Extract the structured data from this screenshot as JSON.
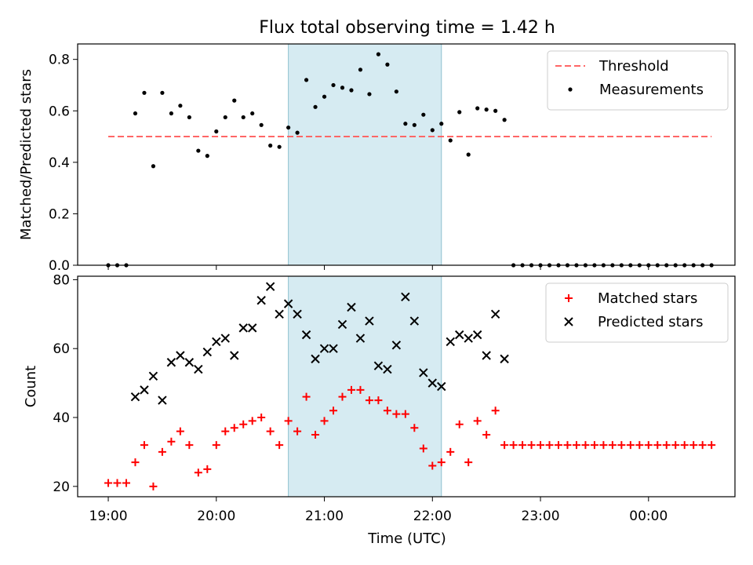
{
  "figure_title": "Flux total observing time = 1.42 h",
  "x_axis": {
    "label": "Time (UTC)",
    "ticks": [
      "19:00",
      "20:00",
      "21:00",
      "22:00",
      "23:00",
      "00:00"
    ]
  },
  "highlight_window": {
    "start": "20:40",
    "end": "22:05",
    "color": "#add8e6"
  },
  "colors": {
    "threshold": "#ff6666",
    "measurements": "#000000",
    "matched": "#ff0000",
    "predicted": "#000000"
  },
  "chart_data": [
    {
      "type": "scatter",
      "ylabel": "Matched/Predicted stars",
      "ylim": [
        0,
        0.86
      ],
      "yticks": [
        "0.0",
        "0.2",
        "0.4",
        "0.6",
        "0.8"
      ],
      "legend_placement": "top-right",
      "threshold": {
        "name": "Threshold",
        "y": 0.5,
        "x_start": "19:00",
        "x_end": "00:35"
      },
      "series": [
        {
          "name": "Measurements",
          "x": [
            "19:00",
            "19:05",
            "19:10",
            "19:15",
            "19:20",
            "19:25",
            "19:30",
            "19:35",
            "19:40",
            "19:45",
            "19:50",
            "19:55",
            "20:00",
            "20:05",
            "20:10",
            "20:15",
            "20:20",
            "20:25",
            "20:30",
            "20:35",
            "20:40",
            "20:45",
            "20:50",
            "20:55",
            "21:00",
            "21:05",
            "21:10",
            "21:15",
            "21:20",
            "21:25",
            "21:30",
            "21:35",
            "21:40",
            "21:45",
            "21:50",
            "21:55",
            "22:00",
            "22:05",
            "22:10",
            "22:15",
            "22:20",
            "22:25",
            "22:30",
            "22:35",
            "22:40",
            "22:45",
            "22:50",
            "22:55",
            "23:00",
            "23:05",
            "23:10",
            "23:15",
            "23:20",
            "23:25",
            "23:30",
            "23:35",
            "23:40",
            "23:45",
            "23:50",
            "23:55",
            "00:00",
            "00:05",
            "00:10",
            "00:15",
            "00:20",
            "00:25",
            "00:30",
            "00:35"
          ],
          "y": [
            0.0,
            0.0,
            0.0,
            0.59,
            0.67,
            0.385,
            0.67,
            0.59,
            0.62,
            0.575,
            0.445,
            0.425,
            0.52,
            0.575,
            0.64,
            0.575,
            0.59,
            0.545,
            0.465,
            0.46,
            0.535,
            0.515,
            0.72,
            0.615,
            0.655,
            0.7,
            0.69,
            0.68,
            0.76,
            0.665,
            0.82,
            0.78,
            0.675,
            0.55,
            0.545,
            0.585,
            0.525,
            0.55,
            0.485,
            0.595,
            0.43,
            0.61,
            0.605,
            0.6,
            0.565,
            0.0,
            0.0,
            0.0,
            0.0,
            0.0,
            0.0,
            0.0,
            0.0,
            0.0,
            0.0,
            0.0,
            0.0,
            0.0,
            0.0,
            0.0,
            0.0,
            0.0,
            0.0,
            0.0,
            0.0,
            0.0,
            0.0,
            0.0
          ]
        }
      ]
    },
    {
      "type": "scatter",
      "ylabel": "Count",
      "ylim": [
        17,
        81
      ],
      "yticks": [
        "20",
        "40",
        "60",
        "80"
      ],
      "legend_placement": "top-right",
      "series": [
        {
          "name": "Matched stars",
          "marker": "+",
          "x": [
            "19:00",
            "19:05",
            "19:10",
            "19:15",
            "19:20",
            "19:25",
            "19:30",
            "19:35",
            "19:40",
            "19:45",
            "19:50",
            "19:55",
            "20:00",
            "20:05",
            "20:10",
            "20:15",
            "20:20",
            "20:25",
            "20:30",
            "20:35",
            "20:40",
            "20:45",
            "20:50",
            "20:55",
            "21:00",
            "21:05",
            "21:10",
            "21:15",
            "21:20",
            "21:25",
            "21:30",
            "21:35",
            "21:40",
            "21:45",
            "21:50",
            "21:55",
            "22:00",
            "22:05",
            "22:10",
            "22:15",
            "22:20",
            "22:25",
            "22:30",
            "22:35",
            "22:40",
            "22:45",
            "22:50",
            "22:55",
            "23:00",
            "23:05",
            "23:10",
            "23:15",
            "23:20",
            "23:25",
            "23:30",
            "23:35",
            "23:40",
            "23:45",
            "23:50",
            "23:55",
            "00:00",
            "00:05",
            "00:10",
            "00:15",
            "00:20",
            "00:25",
            "00:30",
            "00:35"
          ],
          "y": [
            21,
            21,
            21,
            27,
            32,
            20,
            30,
            33,
            36,
            32,
            24,
            25,
            32,
            36,
            37,
            38,
            39,
            40,
            36,
            32,
            39,
            36,
            46,
            35,
            39,
            42,
            46,
            48,
            48,
            45,
            45,
            42,
            41,
            41,
            37,
            31,
            26,
            27,
            30,
            38,
            27,
            39,
            35,
            42,
            32,
            32,
            32,
            32,
            32,
            32,
            32,
            32,
            32,
            32,
            32,
            32,
            32,
            32,
            32,
            32,
            32,
            32,
            32,
            32,
            32,
            32,
            32,
            32
          ]
        },
        {
          "name": "Predicted stars",
          "marker": "x",
          "x": [
            "19:15",
            "19:20",
            "19:25",
            "19:30",
            "19:35",
            "19:40",
            "19:45",
            "19:50",
            "19:55",
            "20:00",
            "20:05",
            "20:10",
            "20:15",
            "20:20",
            "20:25",
            "20:30",
            "20:35",
            "20:40",
            "20:45",
            "20:50",
            "20:55",
            "21:00",
            "21:05",
            "21:10",
            "21:15",
            "21:20",
            "21:25",
            "21:30",
            "21:35",
            "21:40",
            "21:45",
            "21:50",
            "21:55",
            "22:00",
            "22:05",
            "22:10",
            "22:15",
            "22:20",
            "22:25",
            "22:30",
            "22:35",
            "22:40"
          ],
          "y": [
            46,
            48,
            52,
            45,
            56,
            58,
            56,
            54,
            59,
            62,
            63,
            58,
            66,
            66,
            74,
            78,
            70,
            73,
            70,
            64,
            57,
            60,
            60,
            67,
            72,
            63,
            68,
            55,
            54,
            61,
            75,
            68,
            53,
            50,
            49,
            62,
            64,
            63,
            64,
            58,
            70,
            57
          ]
        }
      ]
    }
  ]
}
